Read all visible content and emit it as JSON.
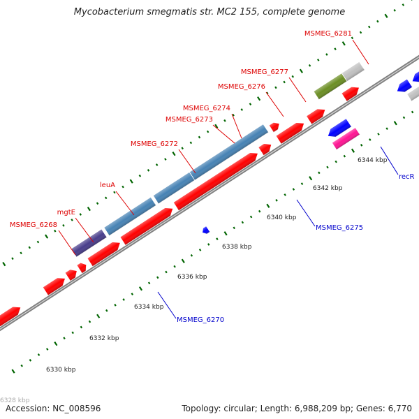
{
  "title": "Mycobacterium smegmatis str. MC2 155, complete genome",
  "footer": {
    "accession": "Accession: NC_008596",
    "summary": "Topology: circular; Length: 6,988,209 bp; Genes: 6,770"
  },
  "ticks": [
    {
      "label": "6328 kbp"
    },
    {
      "label": "6330 kbp"
    },
    {
      "label": "6332 kbp"
    },
    {
      "label": "6334 kbp"
    },
    {
      "label": "6336 kbp"
    },
    {
      "label": "6338 kbp"
    },
    {
      "label": "6340 kbp"
    },
    {
      "label": "6342 kbp"
    },
    {
      "label": "6344 kbp"
    }
  ],
  "gene_labels_forward": [
    "MSMEG_6268",
    "mgtE",
    "leuA",
    "MSMEG_6272",
    "MSMEG_6273",
    "MSMEG_6274",
    "MSMEG_6276",
    "MSMEG_6277",
    "MSMEG_6281"
  ],
  "gene_labels_reverse": [
    "MSMEG_6270",
    "MSMEG_6275",
    "recR"
  ],
  "colors": {
    "cds": "#ff0000",
    "red_label": "#dd0000",
    "blue_label": "#0000cc",
    "blue_feature": "#0000ff",
    "steel": "#4682b4",
    "olive": "#6b8e23",
    "indigo": "#483d8b",
    "pink": "#ff1493",
    "gray": "#c0c0c0",
    "backbone": "#808080",
    "tick": "#006400"
  }
}
